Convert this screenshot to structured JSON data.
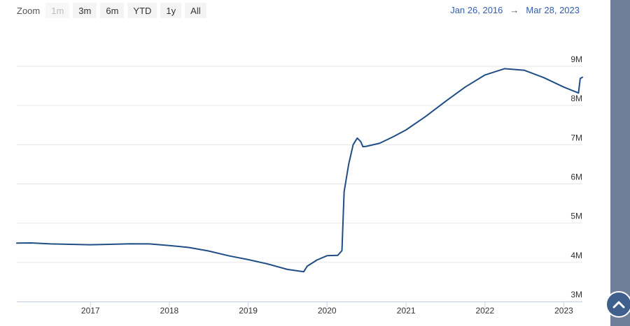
{
  "toolbar": {
    "zoom_label": "Zoom",
    "buttons": [
      {
        "label": "1m",
        "disabled": true
      },
      {
        "label": "3m",
        "disabled": false
      },
      {
        "label": "6m",
        "disabled": false
      },
      {
        "label": "YTD",
        "disabled": false
      },
      {
        "label": "1y",
        "disabled": false
      },
      {
        "label": "All",
        "disabled": false
      }
    ]
  },
  "date_range": {
    "from": "Jan 26, 2016",
    "arrow": "→",
    "to": "Mar 28, 2023"
  },
  "colors": {
    "line": "#1f4e86",
    "grid": "#e6e6e6",
    "side_strip": "#6f7f99",
    "button": "#3f5f8c"
  },
  "icons": {
    "scroll_top": "chevron-up-icon"
  },
  "chart_data": {
    "type": "line",
    "title": "",
    "xlabel": "",
    "ylabel": "",
    "grid": true,
    "xlim": [
      "2016-01-26",
      "2023-03-28"
    ],
    "ylim": [
      3000000,
      9000000
    ],
    "yticks": [
      {
        "value": 3000000,
        "label": "3M"
      },
      {
        "value": 4000000,
        "label": "4M"
      },
      {
        "value": 5000000,
        "label": "5M"
      },
      {
        "value": 6000000,
        "label": "6M"
      },
      {
        "value": 7000000,
        "label": "7M"
      },
      {
        "value": 8000000,
        "label": "8M"
      },
      {
        "value": 9000000,
        "label": "9M"
      }
    ],
    "xticks": [
      {
        "date": "2017-01-01",
        "label": "2017"
      },
      {
        "date": "2018-01-01",
        "label": "2018"
      },
      {
        "date": "2019-01-01",
        "label": "2019"
      },
      {
        "date": "2020-01-01",
        "label": "2020"
      },
      {
        "date": "2021-01-01",
        "label": "2021"
      },
      {
        "date": "2022-01-01",
        "label": "2022"
      },
      {
        "date": "2023-01-01",
        "label": "2023"
      }
    ],
    "series": [
      {
        "points": [
          [
            "2016-01-26",
            4490000
          ],
          [
            "2016-04-01",
            4495000
          ],
          [
            "2016-07-01",
            4470000
          ],
          [
            "2016-10-01",
            4460000
          ],
          [
            "2017-01-01",
            4450000
          ],
          [
            "2017-04-01",
            4460000
          ],
          [
            "2017-07-01",
            4475000
          ],
          [
            "2017-10-01",
            4470000
          ],
          [
            "2018-01-01",
            4430000
          ],
          [
            "2018-04-01",
            4380000
          ],
          [
            "2018-07-01",
            4290000
          ],
          [
            "2018-10-01",
            4170000
          ],
          [
            "2019-01-01",
            4070000
          ],
          [
            "2019-04-01",
            3960000
          ],
          [
            "2019-07-01",
            3820000
          ],
          [
            "2019-09-15",
            3760000
          ],
          [
            "2019-10-01",
            3900000
          ],
          [
            "2019-11-15",
            4060000
          ],
          [
            "2020-01-01",
            4170000
          ],
          [
            "2020-02-20",
            4180000
          ],
          [
            "2020-03-10",
            4300000
          ],
          [
            "2020-03-20",
            5800000
          ],
          [
            "2020-04-10",
            6500000
          ],
          [
            "2020-05-01",
            7000000
          ],
          [
            "2020-05-20",
            7170000
          ],
          [
            "2020-06-05",
            7080000
          ],
          [
            "2020-06-15",
            6950000
          ],
          [
            "2020-07-01",
            6960000
          ],
          [
            "2020-09-01",
            7040000
          ],
          [
            "2020-11-01",
            7200000
          ],
          [
            "2021-01-01",
            7380000
          ],
          [
            "2021-04-01",
            7720000
          ],
          [
            "2021-07-01",
            8100000
          ],
          [
            "2021-10-01",
            8470000
          ],
          [
            "2022-01-01",
            8780000
          ],
          [
            "2022-04-01",
            8940000
          ],
          [
            "2022-07-01",
            8900000
          ],
          [
            "2022-10-01",
            8710000
          ],
          [
            "2023-01-01",
            8470000
          ],
          [
            "2023-03-10",
            8320000
          ],
          [
            "2023-03-18",
            8690000
          ],
          [
            "2023-03-28",
            8720000
          ]
        ]
      }
    ]
  }
}
